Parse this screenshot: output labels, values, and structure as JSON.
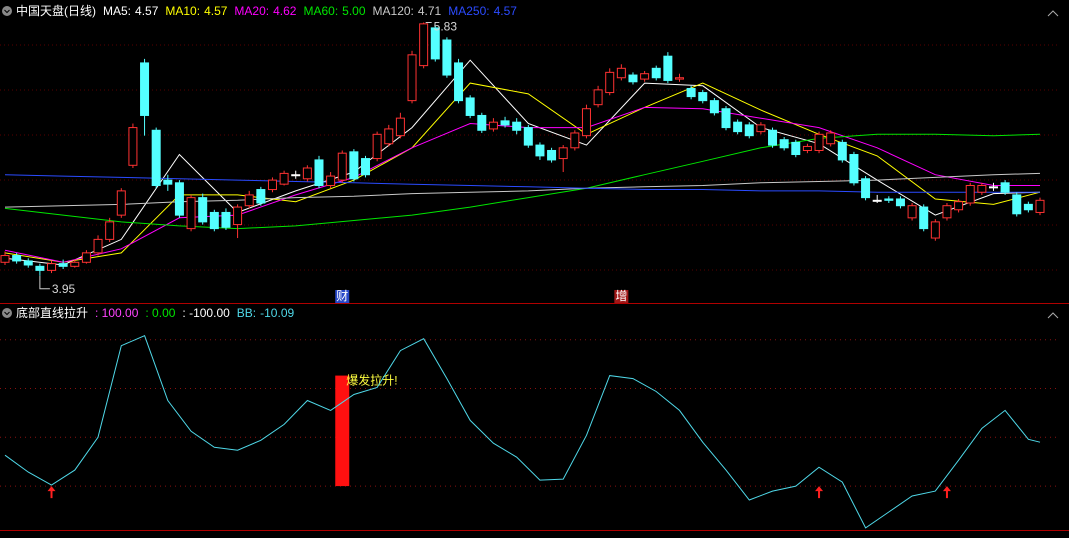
{
  "header": {
    "title": "中国天盘(日线)"
  },
  "chart_data": [
    {
      "type": "candlestick",
      "xlim": [
        0,
        89
      ],
      "ylim": [
        3.77,
        5.96
      ],
      "up_color": "#ff3232",
      "down_color": "#54ffff",
      "flat_color": "#ffffff",
      "open": [
        4.05,
        4.1,
        4.06,
        4.02,
        3.99,
        4.04,
        4.02,
        4.05,
        4.12,
        4.22,
        4.4,
        4.77,
        5.53,
        5.03,
        4.66,
        4.64,
        4.3,
        4.53,
        4.42,
        4.42,
        4.33,
        4.47,
        4.59,
        4.59,
        4.63,
        4.7,
        4.67,
        4.81,
        4.62,
        4.66,
        4.87,
        4.82,
        4.82,
        4.93,
        4.99,
        5.25,
        5.51,
        5.79,
        5.7,
        5.53,
        5.27,
        5.14,
        5.04,
        5.1,
        5.09,
        5.05,
        4.92,
        4.88,
        4.82,
        4.9,
        4.99,
        5.22,
        5.31,
        5.42,
        5.44,
        5.41,
        5.49,
        5.58,
        5.41,
        5.34,
        5.31,
        5.25,
        5.19,
        5.09,
        5.07,
        5.02,
        5.03,
        4.96,
        4.94,
        4.88,
        4.88,
        4.93,
        4.94,
        4.85,
        4.67,
        4.51,
        4.52,
        4.52,
        4.38,
        4.46,
        4.23,
        4.38,
        4.44,
        4.49,
        4.57,
        4.61,
        4.64,
        4.55,
        4.48,
        4.42
      ],
      "high": [
        4.13,
        4.12,
        4.08,
        4.04,
        4.06,
        4.07,
        4.07,
        4.14,
        4.25,
        4.38,
        4.6,
        5.08,
        5.56,
        5.05,
        4.7,
        4.66,
        4.55,
        4.56,
        4.44,
        4.45,
        4.48,
        4.58,
        4.61,
        4.68,
        4.73,
        4.73,
        4.77,
        4.84,
        4.72,
        4.88,
        4.89,
        4.84,
        5.02,
        5.07,
        5.16,
        5.62,
        5.83,
        5.81,
        5.72,
        5.56,
        5.29,
        5.16,
        5.12,
        5.13,
        5.12,
        5.07,
        4.94,
        4.9,
        4.92,
        5.03,
        5.22,
        5.36,
        5.49,
        5.52,
        5.46,
        5.47,
        5.51,
        5.61,
        5.45,
        5.36,
        5.33,
        5.27,
        5.21,
        5.11,
        5.09,
        5.09,
        5.05,
        4.98,
        4.96,
        4.93,
        5.02,
        5.03,
        4.96,
        4.87,
        4.69,
        4.55,
        4.54,
        4.54,
        4.49,
        4.48,
        4.37,
        4.49,
        4.52,
        4.64,
        4.64,
        4.64,
        4.66,
        4.57,
        4.5,
        4.53
      ],
      "low": [
        4.03,
        4.04,
        4.01,
        3.95,
        3.97,
        4.0,
        4.01,
        4.04,
        4.1,
        4.2,
        4.38,
        4.75,
        4.99,
        4.6,
        4.58,
        4.38,
        4.28,
        4.33,
        4.28,
        4.29,
        4.23,
        4.45,
        4.47,
        4.57,
        4.62,
        4.67,
        4.65,
        4.6,
        4.6,
        4.64,
        4.65,
        4.68,
        4.8,
        4.91,
        4.97,
        5.23,
        5.49,
        5.54,
        5.42,
        5.23,
        5.12,
        5.01,
        5.02,
        5.05,
        5.0,
        4.9,
        4.81,
        4.79,
        4.72,
        4.88,
        4.97,
        5.2,
        5.29,
        5.4,
        5.37,
        5.39,
        5.4,
        5.38,
        5.39,
        5.26,
        5.23,
        5.14,
        5.03,
        5.0,
        4.97,
        5.0,
        4.9,
        4.88,
        4.83,
        4.86,
        4.86,
        4.91,
        4.79,
        4.62,
        4.51,
        4.49,
        4.49,
        4.45,
        4.36,
        4.28,
        4.21,
        4.36,
        4.42,
        4.47,
        4.55,
        4.58,
        4.55,
        4.39,
        4.42,
        4.4
      ],
      "close": [
        4.1,
        4.06,
        4.03,
        3.99,
        4.04,
        4.02,
        4.05,
        4.12,
        4.22,
        4.35,
        4.58,
        5.05,
        5.14,
        4.62,
        4.63,
        4.4,
        4.53,
        4.35,
        4.3,
        4.31,
        4.46,
        4.55,
        4.49,
        4.66,
        4.71,
        4.7,
        4.75,
        4.62,
        4.69,
        4.86,
        4.67,
        4.7,
        5.0,
        5.04,
        5.12,
        5.59,
        5.82,
        5.56,
        5.44,
        5.25,
        5.14,
        5.03,
        5.09,
        5.07,
        5.03,
        4.92,
        4.84,
        4.81,
        4.9,
        5.01,
        5.19,
        5.33,
        5.46,
        5.49,
        5.39,
        5.45,
        5.42,
        5.4,
        5.42,
        5.28,
        5.25,
        5.16,
        5.05,
        5.02,
        4.99,
        5.07,
        4.92,
        4.9,
        4.85,
        4.91,
        5.0,
        5.01,
        4.81,
        4.64,
        4.53,
        4.51,
        4.51,
        4.47,
        4.47,
        4.3,
        4.35,
        4.47,
        4.5,
        4.62,
        4.62,
        4.61,
        4.57,
        4.41,
        4.44,
        4.51
      ],
      "ma_x": [
        0,
        5,
        10,
        15,
        20,
        25,
        30,
        35,
        40,
        45,
        50,
        55,
        60,
        65,
        70,
        75,
        80,
        85,
        89
      ],
      "series": [
        {
          "name": "MA5:",
          "color": "#ffffff",
          "values": [
            4.08,
            4.03,
            4.22,
            4.85,
            4.42,
            4.58,
            4.72,
            5.05,
            5.55,
            5.08,
            4.92,
            5.38,
            5.36,
            5.05,
            4.93,
            4.66,
            4.4,
            4.56,
            4.57
          ]
        },
        {
          "name": "MA10:",
          "color": "#ffff00",
          "values": [
            4.12,
            4.05,
            4.12,
            4.55,
            4.55,
            4.5,
            4.66,
            4.9,
            5.38,
            5.3,
            5.0,
            5.2,
            5.38,
            5.18,
            5.0,
            4.84,
            4.52,
            4.48,
            4.57
          ]
        },
        {
          "name": "MA20:",
          "color": "#ff00ff",
          "values": [
            4.14,
            4.05,
            4.15,
            4.38,
            4.4,
            4.55,
            4.68,
            4.9,
            5.08,
            5.05,
            5.05,
            5.2,
            5.19,
            5.12,
            5.05,
            4.9,
            4.7,
            4.62,
            4.62
          ]
        },
        {
          "name": "MA60:",
          "color": "#00e600",
          "values": [
            4.45,
            4.4,
            4.35,
            4.32,
            4.3,
            4.32,
            4.36,
            4.4,
            4.46,
            4.53,
            4.6,
            4.7,
            4.8,
            4.9,
            4.97,
            5.0,
            5.0,
            4.99,
            5.0
          ],
          "last_label": "5.00"
        },
        {
          "name": "MA120:",
          "color": "#c8c8c8",
          "values": [
            4.46,
            4.47,
            4.48,
            4.5,
            4.51,
            4.53,
            4.54,
            4.56,
            4.57,
            4.58,
            4.6,
            4.61,
            4.62,
            4.64,
            4.65,
            4.66,
            4.68,
            4.7,
            4.71
          ]
        },
        {
          "name": "MA250:",
          "color": "#2b4bff",
          "values": [
            4.7,
            4.69,
            4.68,
            4.67,
            4.66,
            4.65,
            4.64,
            4.63,
            4.62,
            4.61,
            4.6,
            4.59,
            4.59,
            4.58,
            4.58,
            4.57,
            4.57,
            4.57,
            4.57
          ]
        }
      ],
      "price_marks": [
        {
          "x": 36,
          "value": 5.83
        },
        {
          "x": 3,
          "value": 3.95
        }
      ],
      "events": [
        {
          "label": "财",
          "x": 29,
          "color": "#2848c8"
        },
        {
          "label": "增",
          "x": 53,
          "color": "#a01818"
        }
      ]
    },
    {
      "type": "line",
      "title": "底部直线拉升",
      "xlim": [
        0,
        89
      ],
      "ylim": [
        -190,
        265
      ],
      "yticks": [
        200,
        100,
        0,
        -100
      ],
      "grid": true,
      "levels": [
        {
          "value": 100,
          "label": ": 100.00",
          "color": "#ff44ff"
        },
        {
          "value": 0,
          "label": ": 0.00",
          "color": "#00e600"
        },
        {
          "value": -100,
          "label": ": -100.00",
          "color": "#ffffff"
        }
      ],
      "series": [
        {
          "name": "BB:",
          "color": "#4fd8e8",
          "x": [
            0,
            2,
            4,
            6,
            8,
            10,
            12,
            14,
            16,
            18,
            20,
            22,
            24,
            26,
            28,
            30,
            32,
            34,
            36,
            38,
            40,
            42,
            44,
            46,
            48,
            50,
            52,
            54,
            56,
            58,
            60,
            62,
            64,
            66,
            68,
            70,
            72,
            74,
            76,
            78,
            80,
            82,
            84,
            86,
            88,
            89
          ],
          "values": [
            -36.7,
            -71.4,
            -98,
            -67.3,
            0,
            187.8,
            208.2,
            75.5,
            12.2,
            -20.4,
            -26.5,
            -6.1,
            26.5,
            75.5,
            55.1,
            87.8,
            102,
            177.6,
            202,
            120.4,
            34.7,
            -12.2,
            -40.8,
            -87.8,
            -85.7,
            4.1,
            126.5,
            120.4,
            93.9,
            55.1,
            -10.2,
            -67.3,
            -128.6,
            -110.2,
            -100,
            -61.2,
            -91.8,
            -185.7,
            -153.1,
            -120.4,
            -110.2,
            -46.9,
            18.4,
            55.1,
            -4.1,
            -10.09
          ]
        }
      ],
      "signal_bar": {
        "x": 29,
        "values": [
          -100,
          126.5
        ],
        "color": "#ff1010"
      },
      "annotation": "爆发拉升!",
      "arrows": {
        "x": [
          4,
          70,
          81
        ],
        "y": -100,
        "color": "#ff2020"
      }
    }
  ]
}
